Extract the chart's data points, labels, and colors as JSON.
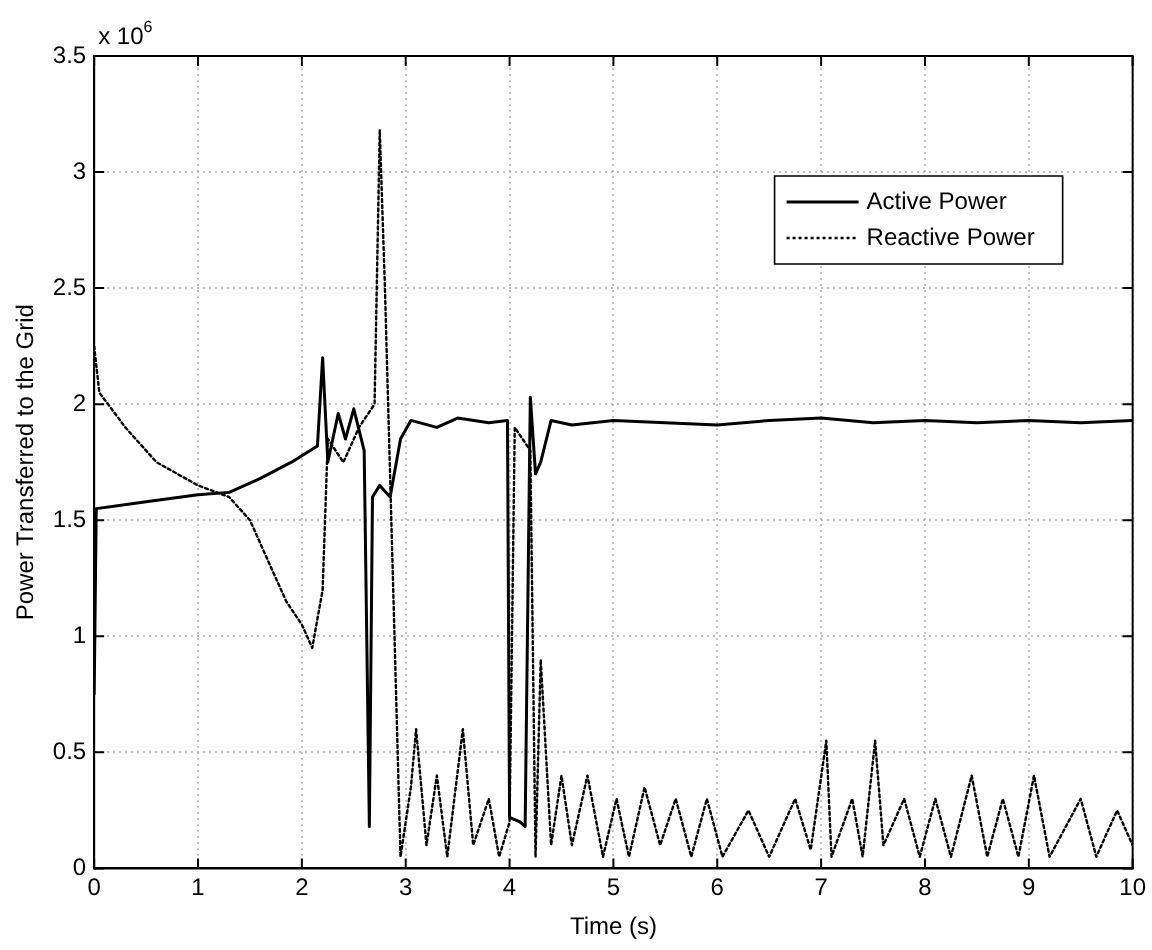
{
  "chart_data": {
    "type": "line",
    "xlabel": "Time (s)",
    "ylabel": "Power Transferred to the Grid",
    "annotations": [
      "x 10$^{6}$"
    ],
    "xlim": [
      0,
      10
    ],
    "xticks": [
      0,
      1,
      2,
      3,
      4,
      5,
      6,
      7,
      8,
      9,
      10
    ],
    "ylim": [
      0,
      3.5
    ],
    "yticks": [
      0,
      0.5,
      1,
      1.5,
      2,
      2.5,
      3,
      3.5
    ],
    "grid": true,
    "legend": "top right",
    "marker": "none",
    "series": [
      {
        "name": "Active Power",
        "color": "#000000",
        "line_style": "solid",
        "x": [
          0,
          0.02,
          0.5,
          1,
          1.3,
          1.6,
          1.9,
          2.15,
          2.2,
          2.25,
          2.35,
          2.42,
          2.5,
          2.6,
          2.65,
          2.68,
          2.75,
          2.85,
          2.95,
          3.05,
          3.3,
          3.5,
          3.8,
          3.98,
          4.0,
          4.1,
          4.15,
          4.2,
          4.25,
          4.3,
          4.4,
          4.6,
          5,
          5.5,
          6,
          6.5,
          7,
          7.5,
          8,
          8.5,
          9,
          9.5,
          10
        ],
        "values": [
          0.75,
          1.55,
          1.58,
          1.61,
          1.62,
          1.68,
          1.75,
          1.82,
          2.2,
          1.75,
          1.96,
          1.85,
          1.98,
          1.8,
          0.18,
          1.6,
          1.65,
          1.6,
          1.85,
          1.93,
          1.9,
          1.94,
          1.92,
          1.93,
          0.22,
          0.2,
          0.18,
          2.03,
          1.7,
          1.75,
          1.93,
          1.91,
          1.93,
          1.92,
          1.91,
          1.93,
          1.94,
          1.92,
          1.93,
          1.92,
          1.93,
          1.92,
          1.93
        ]
      },
      {
        "name": "Reactive Power",
        "color": "#000000",
        "line_style": "dotted",
        "x": [
          0,
          0.05,
          0.3,
          0.6,
          1,
          1.3,
          1.5,
          1.7,
          1.85,
          2.0,
          2.1,
          2.2,
          2.25,
          2.4,
          2.55,
          2.7,
          2.75,
          2.8,
          2.88,
          2.95,
          3.05,
          3.1,
          3.2,
          3.3,
          3.4,
          3.55,
          3.65,
          3.8,
          3.9,
          4.0,
          4.05,
          4.2,
          4.25,
          4.3,
          4.4,
          4.5,
          4.6,
          4.75,
          4.9,
          5.03,
          5.15,
          5.3,
          5.45,
          5.6,
          5.75,
          5.9,
          6.05,
          6.3,
          6.5,
          6.75,
          6.9,
          7.05,
          7.1,
          7.3,
          7.4,
          7.52,
          7.6,
          7.8,
          7.95,
          8.1,
          8.25,
          8.45,
          8.6,
          8.75,
          8.9,
          9.05,
          9.2,
          9.5,
          9.65,
          9.85,
          10
        ],
        "values": [
          2.25,
          2.05,
          1.9,
          1.75,
          1.65,
          1.6,
          1.5,
          1.3,
          1.15,
          1.05,
          0.95,
          1.2,
          1.85,
          1.75,
          1.9,
          2.0,
          3.18,
          2.5,
          1.2,
          0.05,
          0.35,
          0.6,
          0.1,
          0.4,
          0.05,
          0.6,
          0.1,
          0.3,
          0.05,
          0.2,
          1.9,
          1.8,
          0.05,
          0.9,
          0.1,
          0.4,
          0.1,
          0.4,
          0.05,
          0.3,
          0.05,
          0.35,
          0.1,
          0.3,
          0.05,
          0.3,
          0.05,
          0.25,
          0.05,
          0.3,
          0.08,
          0.55,
          0.05,
          0.3,
          0.05,
          0.55,
          0.1,
          0.3,
          0.05,
          0.3,
          0.05,
          0.4,
          0.05,
          0.3,
          0.05,
          0.4,
          0.05,
          0.3,
          0.05,
          0.25,
          0.1
        ]
      }
    ]
  }
}
